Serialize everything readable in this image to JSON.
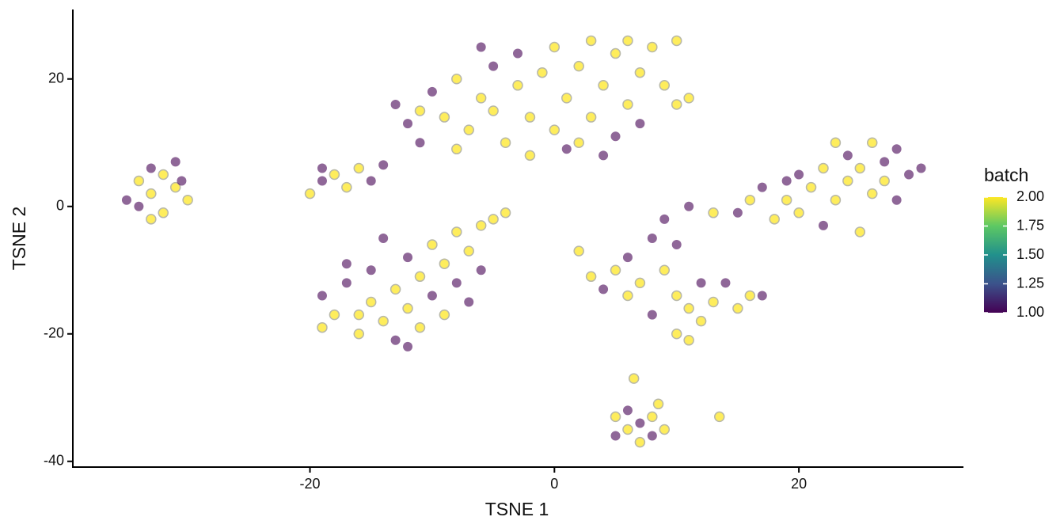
{
  "chart_data": {
    "type": "scatter",
    "xlabel": "TSNE 1",
    "ylabel": "TSNE 2",
    "xlim": [
      -39.4,
      33.4
    ],
    "ylim": [
      -40.9,
      30.9
    ],
    "xticks": [
      -20,
      0,
      20
    ],
    "yticks": [
      -40,
      -20,
      0,
      20
    ],
    "color_label": "batch",
    "clim": [
      1,
      2
    ],
    "cticks": [
      {
        "value": 1,
        "label": "1.00"
      },
      {
        "value": 1.25,
        "label": "1.25"
      },
      {
        "value": 1.5,
        "label": "1.50"
      },
      {
        "value": 1.75,
        "label": "1.75"
      },
      {
        "value": 2,
        "label": "2.00"
      }
    ],
    "colormap": [
      "#440154",
      "#3B528B",
      "#21908C",
      "#5DC863",
      "#FDE725"
    ],
    "x": [
      -33,
      -32,
      -34,
      -31,
      -33,
      -35,
      -32,
      -30.5,
      -34,
      -31,
      -33,
      -30,
      -20,
      -19,
      -18,
      -17,
      -16,
      -15,
      -19,
      -14,
      -12,
      -11,
      -10,
      -9,
      -8,
      -7,
      -6,
      -5,
      -5,
      -4,
      -3,
      -3,
      -2,
      -1,
      0,
      0,
      1,
      1,
      2,
      3,
      3,
      4,
      5,
      5,
      6,
      7,
      7,
      8,
      9,
      10,
      10,
      11,
      -13,
      -11,
      -6,
      -2,
      4,
      6,
      -8,
      2,
      -19,
      -18,
      -17,
      -16,
      -15,
      -15,
      -14,
      -13,
      -13,
      -12,
      -12,
      -11,
      -11,
      -10,
      -10,
      -9,
      -9,
      -8,
      -8,
      -7,
      -7,
      -6,
      -6,
      -5,
      -4,
      -19,
      -17,
      -14,
      -12,
      -16,
      2,
      3,
      4,
      5,
      6,
      6,
      7,
      8,
      8,
      9,
      9,
      10,
      10,
      11,
      11,
      12,
      12,
      13,
      13,
      14,
      15,
      16,
      17,
      10,
      11,
      15,
      16,
      17,
      18,
      19,
      20,
      20,
      21,
      22,
      22,
      23,
      24,
      24,
      25,
      25,
      26,
      26,
      27,
      27,
      28,
      28,
      29,
      30,
      23,
      19,
      5,
      5,
      6,
      6,
      7,
      7,
      8,
      8,
      9,
      6.5,
      8.5,
      13.5
    ],
    "y": [
      2,
      5,
      0,
      3,
      6,
      1,
      -1,
      4,
      4,
      7,
      -2,
      1,
      2,
      4,
      5,
      3,
      6,
      4,
      6,
      6.5,
      13,
      15,
      18,
      14,
      20,
      12,
      17,
      22,
      15,
      10,
      19,
      24,
      14,
      21,
      12,
      25,
      17,
      9,
      22,
      14,
      26,
      19,
      11,
      24,
      16,
      21,
      13,
      25,
      19,
      26,
      16,
      17,
      16,
      10,
      25,
      8,
      8,
      26,
      9,
      10,
      -14,
      -17,
      -12,
      -20,
      -15,
      -10,
      -18,
      -13,
      -21,
      -8,
      -16,
      -11,
      -19,
      -6,
      -14,
      -9,
      -17,
      -4,
      -12,
      -7,
      -15,
      -3,
      -10,
      -2,
      -1,
      -19,
      -9,
      -5,
      -22,
      -17,
      -7,
      -11,
      -13,
      -10,
      -8,
      -14,
      -12,
      -5,
      -17,
      -10,
      -2,
      -14,
      -20,
      -16,
      0,
      -12,
      -18,
      -1,
      -15,
      -12,
      -16,
      -14,
      -14,
      -6,
      -21,
      -1,
      1,
      3,
      -2,
      1,
      5,
      -1,
      3,
      -3,
      6,
      1,
      4,
      8,
      -4,
      6,
      2,
      10,
      7,
      4,
      1,
      9,
      5,
      6,
      10,
      4,
      -33,
      -36,
      -32,
      -35,
      -37,
      -34,
      -33,
      -36,
      -35,
      -27,
      -31,
      -33
    ],
    "batch": [
      2,
      2,
      1,
      2,
      1,
      1,
      2,
      1,
      2,
      1,
      2,
      2,
      2,
      1,
      2,
      2,
      2,
      1,
      1,
      1,
      1,
      2,
      1,
      2,
      2,
      2,
      2,
      1,
      2,
      2,
      2,
      1,
      2,
      2,
      2,
      2,
      2,
      1,
      2,
      2,
      2,
      2,
      1,
      2,
      2,
      2,
      1,
      2,
      2,
      2,
      2,
      2,
      1,
      1,
      1,
      2,
      1,
      2,
      2,
      2,
      1,
      2,
      1,
      2,
      2,
      1,
      2,
      2,
      1,
      1,
      2,
      2,
      2,
      2,
      1,
      2,
      2,
      2,
      1,
      2,
      1,
      2,
      1,
      2,
      2,
      2,
      1,
      1,
      1,
      2,
      2,
      2,
      1,
      2,
      1,
      2,
      2,
      1,
      1,
      2,
      1,
      2,
      2,
      2,
      1,
      1,
      2,
      2,
      2,
      1,
      2,
      2,
      1,
      1,
      2,
      1,
      2,
      1,
      2,
      2,
      1,
      2,
      2,
      1,
      2,
      2,
      2,
      1,
      2,
      2,
      2,
      2,
      1,
      2,
      1,
      1,
      1,
      1,
      2,
      1,
      2,
      1,
      1,
      2,
      2,
      1,
      2,
      1,
      2,
      2,
      2,
      2
    ]
  }
}
